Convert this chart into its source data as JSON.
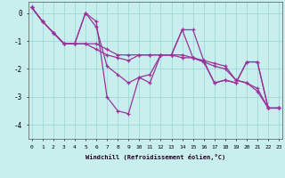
{
  "xlabel": "Windchill (Refroidissement éolien,°C)",
  "background_color": "#c8eeed",
  "grid_color": "#a0d8d8",
  "line_color": "#993399",
  "x_ticks": [
    0,
    1,
    2,
    3,
    4,
    5,
    6,
    7,
    8,
    9,
    10,
    11,
    12,
    13,
    14,
    15,
    16,
    17,
    18,
    19,
    20,
    21,
    22,
    23
  ],
  "y_ticks": [
    0,
    -1,
    -2,
    -3,
    -4
  ],
  "ylim": [
    -4.5,
    0.4
  ],
  "xlim": [
    -0.3,
    23.3
  ],
  "series": [
    [
      0.2,
      -0.3,
      -0.7,
      -1.1,
      -1.1,
      0.0,
      -0.3,
      -3.0,
      -3.5,
      -3.6,
      -2.3,
      -2.5,
      -1.5,
      -1.5,
      -0.6,
      -0.6,
      -1.7,
      -2.5,
      -2.4,
      -2.5,
      -1.75,
      -1.75,
      -3.4,
      -3.4
    ],
    [
      0.2,
      -0.3,
      -0.7,
      -1.1,
      -1.1,
      -1.1,
      -1.1,
      -1.3,
      -1.5,
      -1.5,
      -1.5,
      -1.5,
      -1.5,
      -1.5,
      -1.5,
      -1.6,
      -1.7,
      -1.8,
      -1.9,
      -2.4,
      -2.5,
      -2.7,
      -3.4,
      -3.4
    ],
    [
      0.2,
      -0.3,
      -0.7,
      -1.1,
      -1.1,
      -1.1,
      -1.3,
      -1.5,
      -1.6,
      -1.7,
      -1.5,
      -1.5,
      -1.5,
      -1.5,
      -1.6,
      -1.6,
      -1.75,
      -1.9,
      -2.0,
      -2.4,
      -2.5,
      -2.8,
      -3.4,
      -3.4
    ],
    [
      0.2,
      -0.3,
      -0.7,
      -1.1,
      -1.1,
      -0.0,
      -0.5,
      -1.9,
      -2.2,
      -2.5,
      -2.3,
      -2.2,
      -1.5,
      -1.5,
      -0.6,
      -1.6,
      -1.75,
      -2.5,
      -2.4,
      -2.5,
      -1.75,
      -1.75,
      -3.4,
      -3.4
    ]
  ]
}
